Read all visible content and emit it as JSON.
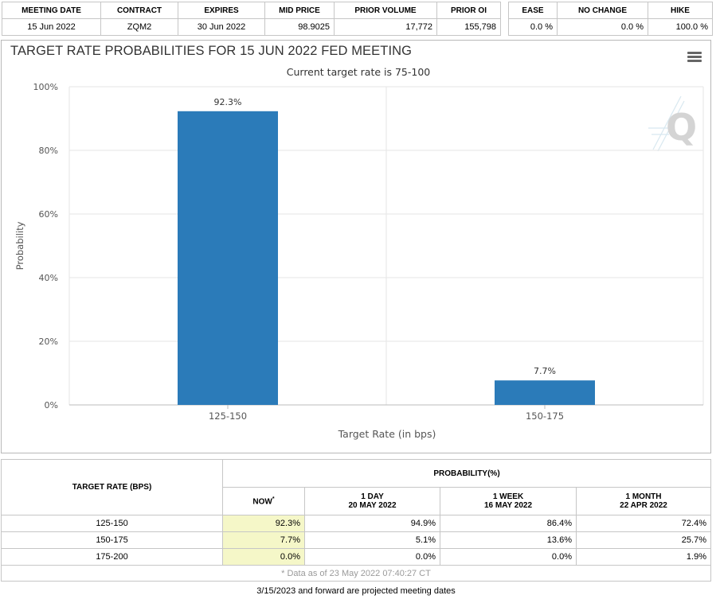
{
  "summary": {
    "headers": [
      "MEETING DATE",
      "CONTRACT",
      "EXPIRES",
      "MID PRICE",
      "PRIOR VOLUME",
      "PRIOR OI"
    ],
    "row": [
      "15 Jun 2022",
      "ZQM2",
      "30 Jun 2022",
      "98.9025",
      "17,772",
      "155,798"
    ],
    "outlook_headers": [
      "EASE",
      "NO CHANGE",
      "HIKE"
    ],
    "outlook_row": [
      "0.0 %",
      "0.0 %",
      "100.0 %"
    ]
  },
  "chart": {
    "title": "TARGET RATE PROBABILITIES FOR 15 JUN 2022 FED MEETING",
    "subtitle": "Current target rate is 75-100",
    "watermark": "Q"
  },
  "chart_data": {
    "type": "bar",
    "categories": [
      "125-150",
      "150-175"
    ],
    "values": [
      92.3,
      7.7
    ],
    "data_labels": [
      "92.3%",
      "7.7%"
    ],
    "title": "TARGET RATE PROBABILITIES FOR 15 JUN 2022 FED MEETING",
    "subtitle": "Current target rate is 75-100",
    "xlabel": "Target Rate (in bps)",
    "ylabel": "Probability",
    "ylim": [
      0,
      100
    ],
    "yticks": [
      0,
      20,
      40,
      60,
      80,
      100
    ],
    "ytick_labels": [
      "0%",
      "20%",
      "40%",
      "60%",
      "80%",
      "100%"
    ],
    "bar_color": "#2b7bb9",
    "grid": true
  },
  "probability_table": {
    "rate_header": "TARGET RATE (BPS)",
    "prob_header": "PROBABILITY(%)",
    "columns": [
      {
        "line1": "NOW",
        "line2": "",
        "star": "*"
      },
      {
        "line1": "1 DAY",
        "line2": "20 MAY 2022",
        "star": ""
      },
      {
        "line1": "1 WEEK",
        "line2": "16 MAY 2022",
        "star": ""
      },
      {
        "line1": "1 MONTH",
        "line2": "22 APR 2022",
        "star": ""
      }
    ],
    "rows": [
      {
        "rate": "125-150",
        "now": "92.3%",
        "day": "94.9%",
        "week": "86.4%",
        "month": "72.4%"
      },
      {
        "rate": "150-175",
        "now": "7.7%",
        "day": "5.1%",
        "week": "13.6%",
        "month": "25.7%"
      },
      {
        "rate": "175-200",
        "now": "0.0%",
        "day": "0.0%",
        "week": "0.0%",
        "month": "1.9%"
      }
    ],
    "footnote": "* Data as of 23 May 2022 07:40:27 CT"
  },
  "projected_note": "3/15/2023 and forward are projected meeting dates"
}
